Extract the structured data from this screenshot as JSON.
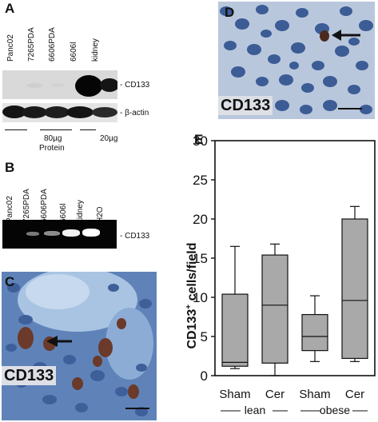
{
  "panel_a": {
    "letter": "A",
    "lanes": [
      "Panc02",
      "7265PDA",
      "6606PDA",
      "6606l",
      "kidney"
    ],
    "label_cd133": "- CD133",
    "label_actin": "- β-actin",
    "load_left": "80µg",
    "load_left_sub": "Protein",
    "load_right": "20µg"
  },
  "panel_b": {
    "letter": "B",
    "lanes": [
      "Panc02",
      "7265PDA",
      "6606PDA",
      "6606l",
      "kidney",
      "H2O"
    ],
    "label_cd133": "- CD133"
  },
  "panel_c": {
    "letter": "C",
    "stain": "CD133"
  },
  "panel_d": {
    "letter": "D",
    "stain": "CD133"
  },
  "panel_e": {
    "letter": "E"
  },
  "chart_data": {
    "type": "box",
    "ylabel": "CD133",
    "ylabel_sup": "+",
    "ylabel_rest": " cells/field",
    "ylim": [
      0,
      30
    ],
    "yticks": [
      0,
      5,
      10,
      15,
      20,
      25,
      30
    ],
    "categories": [
      "Sham",
      "Cer",
      "Sham",
      "Cer"
    ],
    "groups": [
      {
        "label": "lean",
        "members": [
          0,
          1
        ]
      },
      {
        "label": "obese",
        "members": [
          2,
          3
        ]
      }
    ],
    "boxes": [
      {
        "min": 0.9,
        "q1": 1.2,
        "median": 1.7,
        "q3": 10.4,
        "max": 16.5
      },
      {
        "min": 0.0,
        "q1": 1.6,
        "median": 9.0,
        "q3": 15.4,
        "max": 16.8
      },
      {
        "min": 1.8,
        "q1": 3.2,
        "median": 5.0,
        "q3": 7.8,
        "max": 10.2
      },
      {
        "min": 1.8,
        "q1": 2.2,
        "median": 9.6,
        "q3": 20.0,
        "max": 21.6
      }
    ],
    "box_color": "#a9a9a9"
  }
}
